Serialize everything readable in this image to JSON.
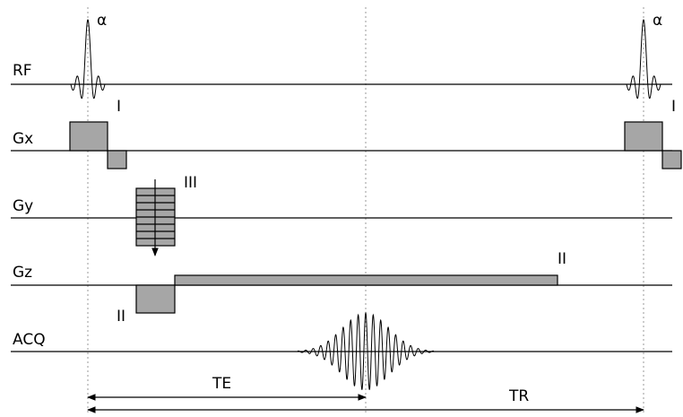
{
  "rows": {
    "rf": "RF",
    "gx": "Gx",
    "gy": "Gy",
    "gz": "Gz",
    "acq": "ACQ"
  },
  "annotations": {
    "alpha_1": "α",
    "alpha_2": "α",
    "roman_i_1": "I",
    "roman_i_2": "I",
    "roman_iii": "III",
    "roman_ii_top": "II",
    "roman_ii_bottom": "II"
  },
  "timings": {
    "te": "TE",
    "tr": "TR"
  },
  "colors": {
    "gradient_fill": "#a6a6a6",
    "line": "#000000",
    "guide": "#999999"
  }
}
